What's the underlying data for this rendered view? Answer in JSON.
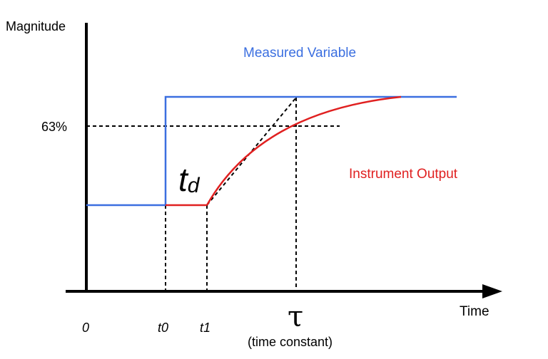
{
  "diagram": {
    "y_axis_label": "Magnitude",
    "x_axis_label": "Time",
    "level_label": "63%",
    "series": {
      "measured": {
        "name": "Measured Variable",
        "color": "#3b6fe0"
      },
      "output": {
        "name": "Instrument Output",
        "color": "#e02020"
      }
    },
    "ticks": {
      "origin": "0",
      "t0": "t0",
      "t1": "t1",
      "tau": "τ",
      "tau_caption": "(time constant)"
    },
    "dead_time": {
      "base": "t",
      "sub": "d"
    }
  }
}
